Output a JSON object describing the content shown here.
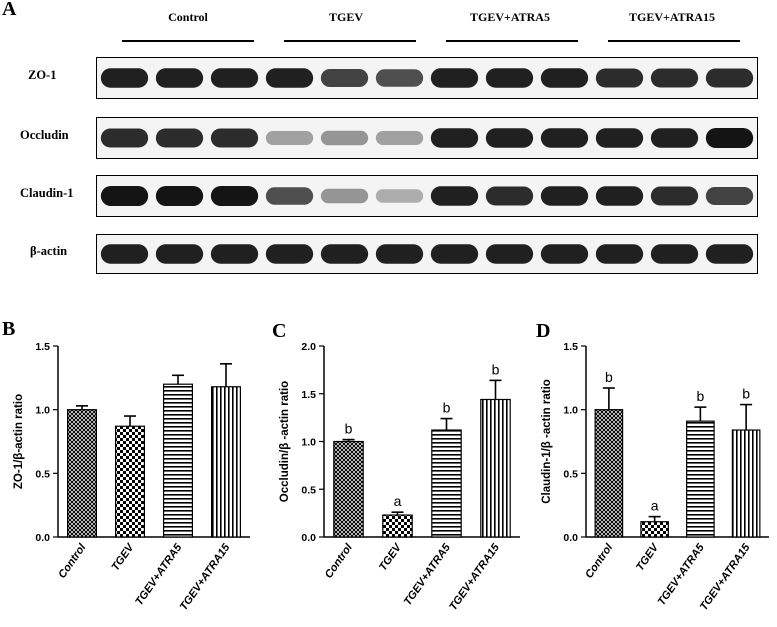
{
  "panel_letters": {
    "a": "A",
    "b": "B",
    "c": "C",
    "d": "D"
  },
  "western_blot": {
    "groups": [
      "Control",
      "TGEV",
      "TGEV+ATRA5",
      "TGEV+ATRA15"
    ],
    "rows": [
      {
        "label": "ZO-1",
        "intensity": [
          0.95,
          0.95,
          0.95,
          0.95,
          0.8,
          0.75,
          0.95,
          0.95,
          0.95,
          0.9,
          0.9,
          0.9
        ]
      },
      {
        "label": "Occludin",
        "intensity": [
          0.9,
          0.9,
          0.9,
          0.4,
          0.45,
          0.4,
          0.95,
          0.95,
          0.95,
          0.95,
          0.95,
          1.0
        ]
      },
      {
        "label": "Claudin-1",
        "intensity": [
          1.0,
          1.0,
          1.0,
          0.75,
          0.45,
          0.35,
          0.95,
          0.9,
          0.95,
          0.95,
          0.9,
          0.8
        ]
      },
      {
        "label": "β-actin",
        "intensity": [
          0.95,
          0.95,
          0.95,
          0.95,
          0.95,
          0.95,
          0.95,
          0.95,
          0.95,
          0.95,
          0.95,
          0.95
        ]
      }
    ]
  },
  "chart_data": [
    {
      "type": "bar",
      "categories": [
        "Control",
        "TGEV",
        "TGEV+ATRA5",
        "TGEV+ATRA15"
      ],
      "values": [
        1.0,
        0.87,
        1.2,
        1.18
      ],
      "errors": [
        0.03,
        0.08,
        0.07,
        0.18
      ],
      "letters": [
        "",
        "",
        "",
        ""
      ],
      "ylabel": "ZO-1/β-actin ratio",
      "ylim": [
        0,
        1.5
      ],
      "yticks": [
        "0.0",
        "0.5",
        "1.0",
        "1.5"
      ],
      "patterns": [
        "crosshatch",
        "checker",
        "horizontal",
        "vertical"
      ]
    },
    {
      "type": "bar",
      "categories": [
        "Control",
        "TGEV",
        "TGEV+ATRA5",
        "TGEV+ATRA15"
      ],
      "values": [
        1.0,
        0.23,
        1.12,
        1.44
      ],
      "errors": [
        0.02,
        0.03,
        0.12,
        0.2
      ],
      "letters": [
        "b",
        "a",
        "b",
        "b"
      ],
      "ylabel": "Occludin/β -actin ratio",
      "ylim": [
        0,
        2.0
      ],
      "yticks": [
        "0.0",
        "0.5",
        "1.0",
        "1.5",
        "2.0"
      ],
      "patterns": [
        "crosshatch",
        "checker",
        "horizontal",
        "vertical"
      ]
    },
    {
      "type": "bar",
      "categories": [
        "Control",
        "TGEV",
        "TGEV+ATRA5",
        "TGEV+ATRA15"
      ],
      "values": [
        1.0,
        0.12,
        0.91,
        0.84
      ],
      "errors": [
        0.17,
        0.04,
        0.11,
        0.2
      ],
      "letters": [
        "b",
        "a",
        "b",
        "b"
      ],
      "ylabel": "Claudin-1/β -actin ratio",
      "ylim": [
        0,
        1.5
      ],
      "yticks": [
        "0.0",
        "0.5",
        "1.0",
        "1.5"
      ],
      "patterns": [
        "crosshatch",
        "checker",
        "horizontal",
        "vertical"
      ]
    }
  ]
}
